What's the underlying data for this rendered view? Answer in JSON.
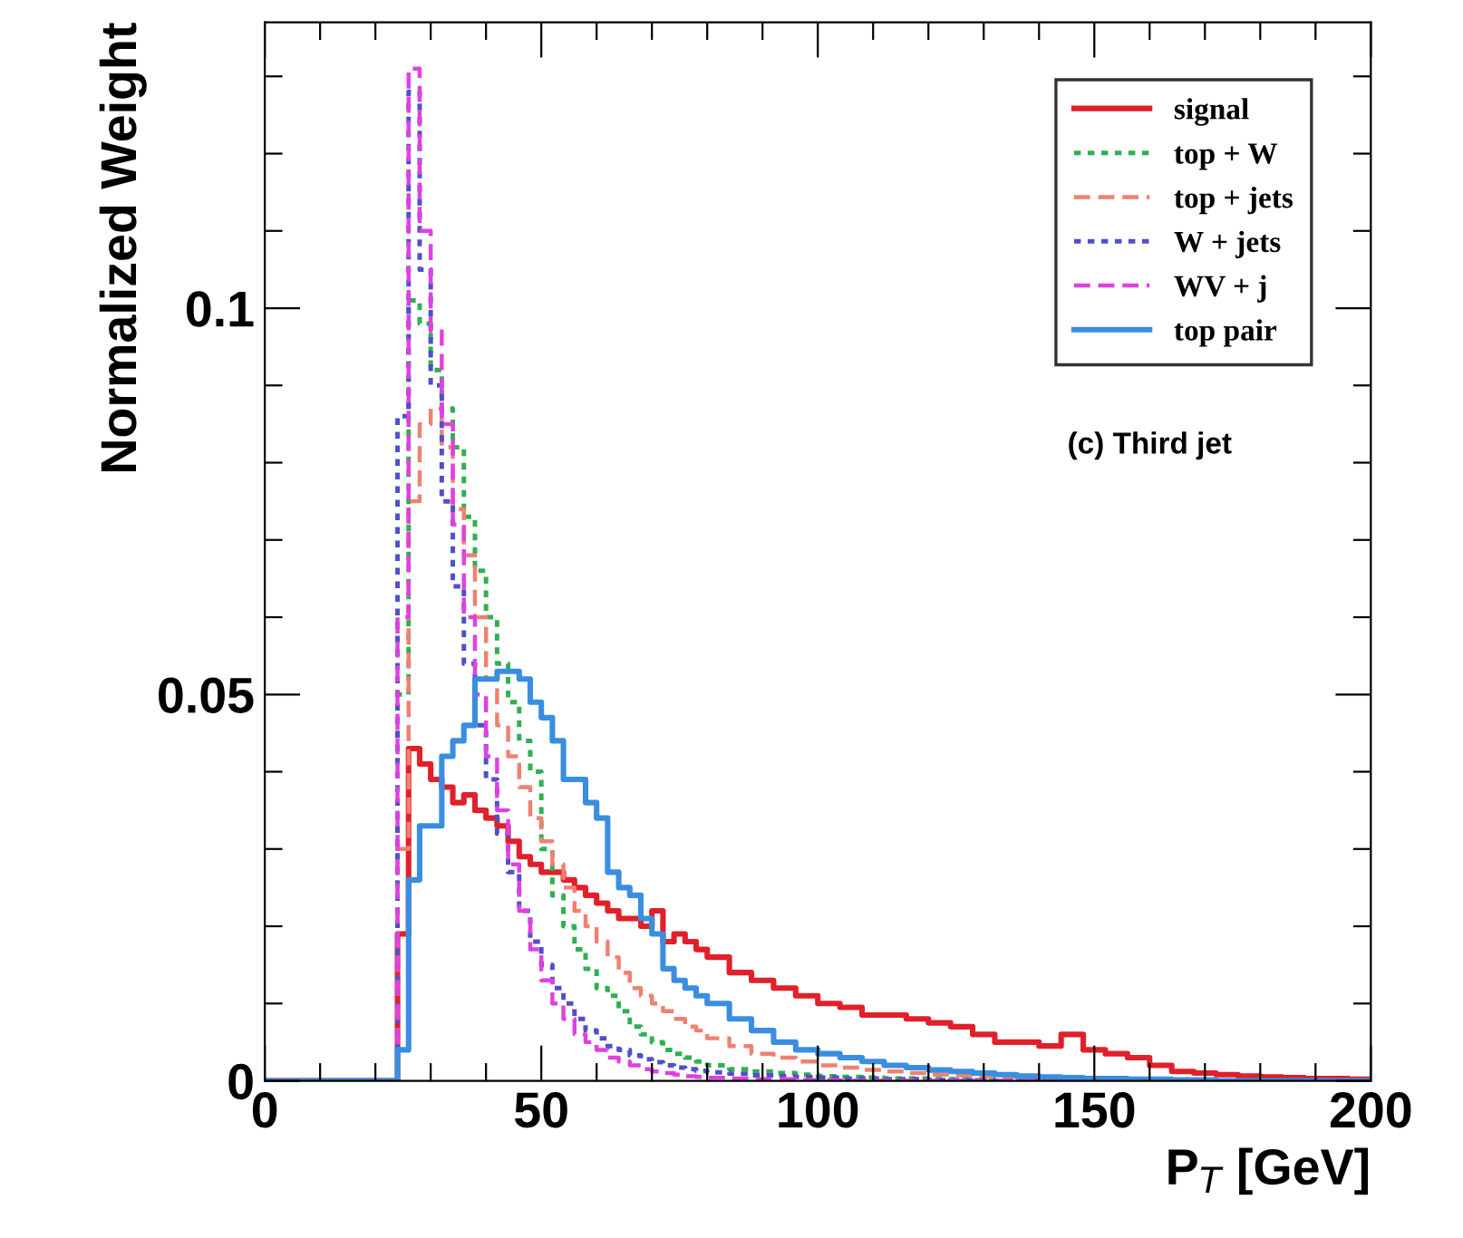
{
  "chart_data": {
    "type": "histogram",
    "xlabel": "P$_{T}$ [GeV]",
    "ylabel": "Normalized Weight",
    "annotations": [
      "(c) Third jet"
    ],
    "bins": [
      0,
      24,
      26,
      28,
      30,
      32,
      34,
      36,
      38,
      40,
      42,
      44,
      46,
      48,
      50,
      52,
      54,
      56,
      58,
      60,
      62,
      64,
      66,
      68,
      70,
      72,
      74,
      76,
      78,
      80,
      84,
      88,
      92,
      96,
      100,
      104,
      108,
      112,
      116,
      120,
      124,
      128,
      132,
      136,
      140,
      144,
      148,
      152,
      156,
      160,
      164,
      168,
      172,
      176,
      180,
      184,
      188,
      192,
      196,
      200
    ],
    "xlim": [
      0,
      200
    ],
    "ylim": [
      0,
      0.137
    ],
    "xticks": [
      0,
      {
        "value": 10,
        "label": null
      },
      {
        "value": 20,
        "label": null
      },
      {
        "value": 30,
        "label": null
      },
      {
        "value": 40,
        "label": null
      },
      50,
      {
        "value": 60,
        "label": null
      },
      {
        "value": 70,
        "label": null
      },
      {
        "value": 80,
        "label": null
      },
      {
        "value": 90,
        "label": null
      },
      100,
      {
        "value": 110,
        "label": null
      },
      {
        "value": 120,
        "label": null
      },
      {
        "value": 130,
        "label": null
      },
      {
        "value": 140,
        "label": null
      },
      150,
      {
        "value": 160,
        "label": null
      },
      {
        "value": 170,
        "label": null
      },
      {
        "value": 180,
        "label": null
      },
      {
        "value": 190,
        "label": null
      },
      200
    ],
    "yticks": [
      0,
      {
        "value": 0.01,
        "label": null
      },
      {
        "value": 0.02,
        "label": null
      },
      {
        "value": 0.03,
        "label": null
      },
      {
        "value": 0.04,
        "label": null
      },
      0.05,
      {
        "value": 0.06,
        "label": null
      },
      {
        "value": 0.07,
        "label": null
      },
      {
        "value": 0.08,
        "label": null
      },
      {
        "value": 0.09,
        "label": null
      },
      0.1,
      {
        "value": 0.11,
        "label": null
      },
      {
        "value": 0.12,
        "label": null
      },
      {
        "value": 0.13,
        "label": null
      }
    ],
    "legend": "top right",
    "grid": false,
    "series": [
      {
        "name": "signal",
        "color": "#e0202a",
        "line_style": "solid",
        "values": [
          0,
          0.019,
          0.043,
          0.041,
          0.039,
          0.038,
          0.036,
          0.037,
          0.035,
          0.034,
          0.033,
          0.031,
          0.029,
          0.028,
          0.027,
          0.027,
          0.026,
          0.025,
          0.024,
          0.023,
          0.022,
          0.021,
          0.021,
          0.02,
          0.022,
          0.018,
          0.019,
          0.018,
          0.017,
          0.016,
          0.014,
          0.013,
          0.012,
          0.011,
          0.01,
          0.0095,
          0.0085,
          0.0085,
          0.008,
          0.0075,
          0.007,
          0.006,
          0.005,
          0.005,
          0.0045,
          0.006,
          0.004,
          0.0035,
          0.003,
          0.002,
          0.0012,
          0.001,
          0.0008,
          0.0006,
          0.0005,
          0.0004,
          0.0003,
          0.0003,
          0.0002
        ]
      },
      {
        "name": "top + W",
        "color": "#30b050",
        "line_style": "dotted",
        "values": [
          0,
          0.05,
          0.101,
          0.098,
          0.092,
          0.087,
          0.082,
          0.073,
          0.066,
          0.06,
          0.054,
          0.049,
          0.044,
          0.04,
          0.03,
          0.024,
          0.02,
          0.017,
          0.0145,
          0.012,
          0.011,
          0.009,
          0.007,
          0.006,
          0.005,
          0.004,
          0.0035,
          0.003,
          0.0025,
          0.002,
          0.0015,
          0.0012,
          0.001,
          0.0008,
          0.0006,
          0.0005,
          0.0004,
          0.0003,
          0.0003,
          0.0002,
          0.0002,
          0.0001,
          0.0001,
          0.0001,
          0,
          0,
          0,
          0,
          0,
          0,
          0,
          0,
          0,
          0,
          0,
          0,
          0,
          0,
          0
        ]
      },
      {
        "name": "top + jets",
        "color": "#f08070",
        "line_style": "dashed",
        "values": [
          0,
          0.03,
          0.075,
          0.085,
          0.087,
          0.082,
          0.074,
          0.068,
          0.06,
          0.052,
          0.046,
          0.042,
          0.038,
          0.034,
          0.031,
          0.028,
          0.025,
          0.022,
          0.02,
          0.018,
          0.016,
          0.014,
          0.012,
          0.011,
          0.01,
          0.009,
          0.008,
          0.007,
          0.0065,
          0.0055,
          0.0045,
          0.0035,
          0.003,
          0.0025,
          0.002,
          0.0017,
          0.0014,
          0.0012,
          0.001,
          0.0008,
          0.0007,
          0.0006,
          0.0005,
          0.0004,
          0.0003,
          0.0003,
          0.0002,
          0.0002,
          0.0001,
          0.0001,
          0,
          0,
          0,
          0,
          0,
          0,
          0,
          0,
          0
        ]
      },
      {
        "name": "W + jets",
        "color": "#5050c8",
        "line_style": "dotted",
        "values": [
          0,
          0.086,
          0.128,
          0.105,
          0.09,
          0.075,
          0.064,
          0.054,
          0.046,
          0.039,
          0.032,
          0.027,
          0.022,
          0.018,
          0.015,
          0.012,
          0.01,
          0.008,
          0.0065,
          0.0055,
          0.0045,
          0.004,
          0.0033,
          0.0028,
          0.0024,
          0.002,
          0.0017,
          0.0015,
          0.0013,
          0.0011,
          0.0009,
          0.0007,
          0.0006,
          0.0005,
          0.0004,
          0.0003,
          0.0003,
          0.0002,
          0.0002,
          0.0001,
          0.0001,
          0.0001,
          0,
          0,
          0,
          0,
          0,
          0,
          0,
          0,
          0,
          0,
          0,
          0,
          0,
          0,
          0,
          0,
          0
        ]
      },
      {
        "name": "WV + j",
        "color": "#e040e0",
        "line_style": "dashed",
        "values": [
          0,
          0.06,
          0.131,
          0.11,
          0.097,
          0.085,
          0.072,
          0.06,
          0.05,
          0.042,
          0.035,
          0.028,
          0.022,
          0.017,
          0.013,
          0.01,
          0.008,
          0.006,
          0.005,
          0.004,
          0.003,
          0.0025,
          0.002,
          0.0015,
          0.0012,
          0.001,
          0.0008,
          0.0006,
          0.0005,
          0.0004,
          0.0003,
          0.0002,
          0.0002,
          0.0001,
          0.0001,
          0,
          0,
          0,
          0,
          0,
          0,
          0,
          0,
          0,
          0,
          0,
          0,
          0,
          0,
          0,
          0,
          0,
          0,
          0,
          0,
          0,
          0,
          0,
          0
        ]
      },
      {
        "name": "top pair",
        "color": "#3a8ee0",
        "line_style": "solid",
        "values": [
          0,
          0.004,
          0.026,
          0.033,
          0.033,
          0.042,
          0.044,
          0.046,
          0.052,
          0.052,
          0.053,
          0.053,
          0.052,
          0.049,
          0.047,
          0.044,
          0.039,
          0.039,
          0.036,
          0.034,
          0.027,
          0.025,
          0.024,
          0.021,
          0.019,
          0.0145,
          0.013,
          0.012,
          0.011,
          0.01,
          0.008,
          0.0065,
          0.005,
          0.004,
          0.0035,
          0.003,
          0.0025,
          0.002,
          0.0017,
          0.0014,
          0.0012,
          0.001,
          0.0008,
          0.0006,
          0.0005,
          0.0004,
          0.0003,
          0.0003,
          0.0002,
          0.0002,
          0.0001,
          0.0001,
          0,
          0,
          0,
          0,
          0,
          0,
          0
        ]
      }
    ]
  }
}
